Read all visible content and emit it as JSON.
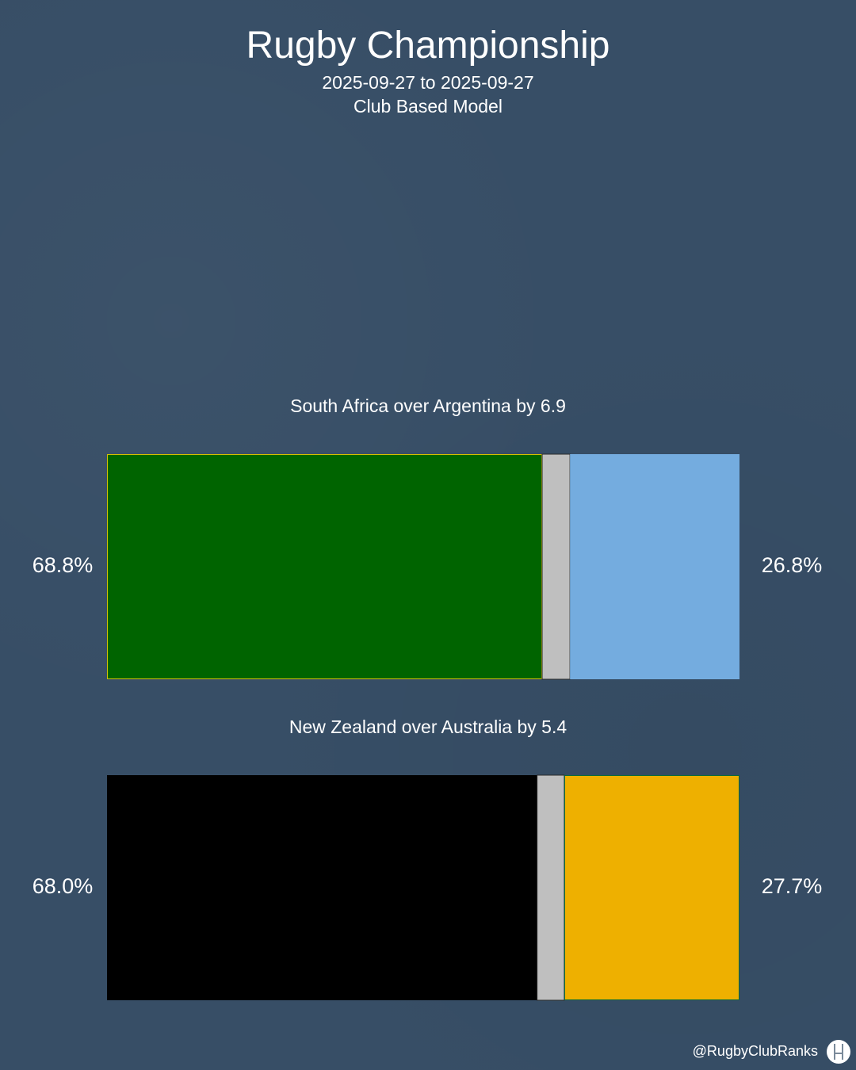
{
  "header": {
    "title": "Rugby Championship",
    "subtitle_dates": "2025-09-27 to 2025-09-27",
    "subtitle_model": "Club Based Model"
  },
  "footer": {
    "handle": "@RugbyClubRanks",
    "logo_icon": "rugby-posts-icon"
  },
  "chart_data": {
    "type": "bar",
    "orientation": "horizontal-stacked",
    "segments": [
      "home_win",
      "draw",
      "away_win"
    ],
    "draw_color": "#bfbfbf",
    "matches": [
      {
        "label": "South Africa over Argentina by 6.9",
        "home_win": 68.8,
        "draw": 4.4,
        "away_win": 26.8,
        "home_label": "68.8%",
        "away_label": "26.8%",
        "home_color": "#006400",
        "home_edge": "#d4c000",
        "away_color": "#74acdf",
        "away_edge": "#74acdf"
      },
      {
        "label": "New Zealand over Australia by 5.4",
        "home_win": 68.0,
        "draw": 4.3,
        "away_win": 27.7,
        "home_label": "68.0%",
        "away_label": "27.7%",
        "home_color": "#000000",
        "home_edge": "#000000",
        "away_color": "#eeb000",
        "away_edge": "#0a6b3a"
      }
    ]
  }
}
